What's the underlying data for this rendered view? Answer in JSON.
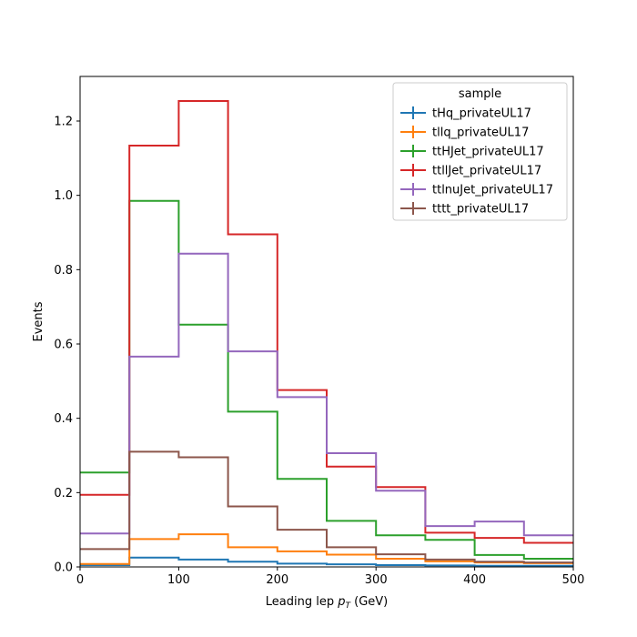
{
  "chart_data": {
    "type": "step-histogram",
    "xlabel_main": "Leading lep ",
    "xlabel_var": "p",
    "xlabel_sub": "T",
    "xlabel_unit": " (GeV)",
    "ylabel": "Events",
    "xlim": [
      0,
      500
    ],
    "ylim": [
      0,
      1.32
    ],
    "xticks": [
      0,
      100,
      200,
      300,
      400,
      500
    ],
    "yticks": [
      0.0,
      0.2,
      0.4,
      0.6,
      0.8,
      1.0,
      1.2
    ],
    "ytick_labels": [
      "0.0",
      "0.2",
      "0.4",
      "0.6",
      "0.8",
      "1.0",
      "1.2"
    ],
    "bin_edges": [
      0,
      50,
      100,
      150,
      200,
      250,
      300,
      350,
      400,
      450,
      500
    ],
    "legend_title": "sample",
    "legend_position": "top-right",
    "grid": false,
    "series": [
      {
        "name": "tHq_privateUL17",
        "color": "#1f77b4",
        "values": [
          0.005,
          0.025,
          0.02,
          0.014,
          0.009,
          0.007,
          0.005,
          0.004,
          0.003,
          0.003
        ]
      },
      {
        "name": "tllq_privateUL17",
        "color": "#ff7f0e",
        "values": [
          0.008,
          0.075,
          0.088,
          0.053,
          0.042,
          0.033,
          0.022,
          0.015,
          0.012,
          0.01
        ]
      },
      {
        "name": "ttHJet_privateUL17",
        "color": "#2ca02c",
        "values": [
          0.254,
          0.985,
          0.652,
          0.418,
          0.237,
          0.124,
          0.085,
          0.073,
          0.032,
          0.022
        ]
      },
      {
        "name": "ttllJet_privateUL17",
        "color": "#d62728",
        "values": [
          0.194,
          1.134,
          1.254,
          0.895,
          0.476,
          0.27,
          0.215,
          0.092,
          0.078,
          0.065
        ]
      },
      {
        "name": "ttlnuJet_privateUL17",
        "color": "#9467bd",
        "values": [
          0.09,
          0.566,
          0.843,
          0.58,
          0.457,
          0.306,
          0.205,
          0.11,
          0.122,
          0.085
        ]
      },
      {
        "name": "tttt_privateUL17",
        "color": "#8c564b",
        "values": [
          0.048,
          0.31,
          0.295,
          0.163,
          0.1,
          0.053,
          0.034,
          0.02,
          0.014,
          0.012
        ]
      }
    ]
  }
}
